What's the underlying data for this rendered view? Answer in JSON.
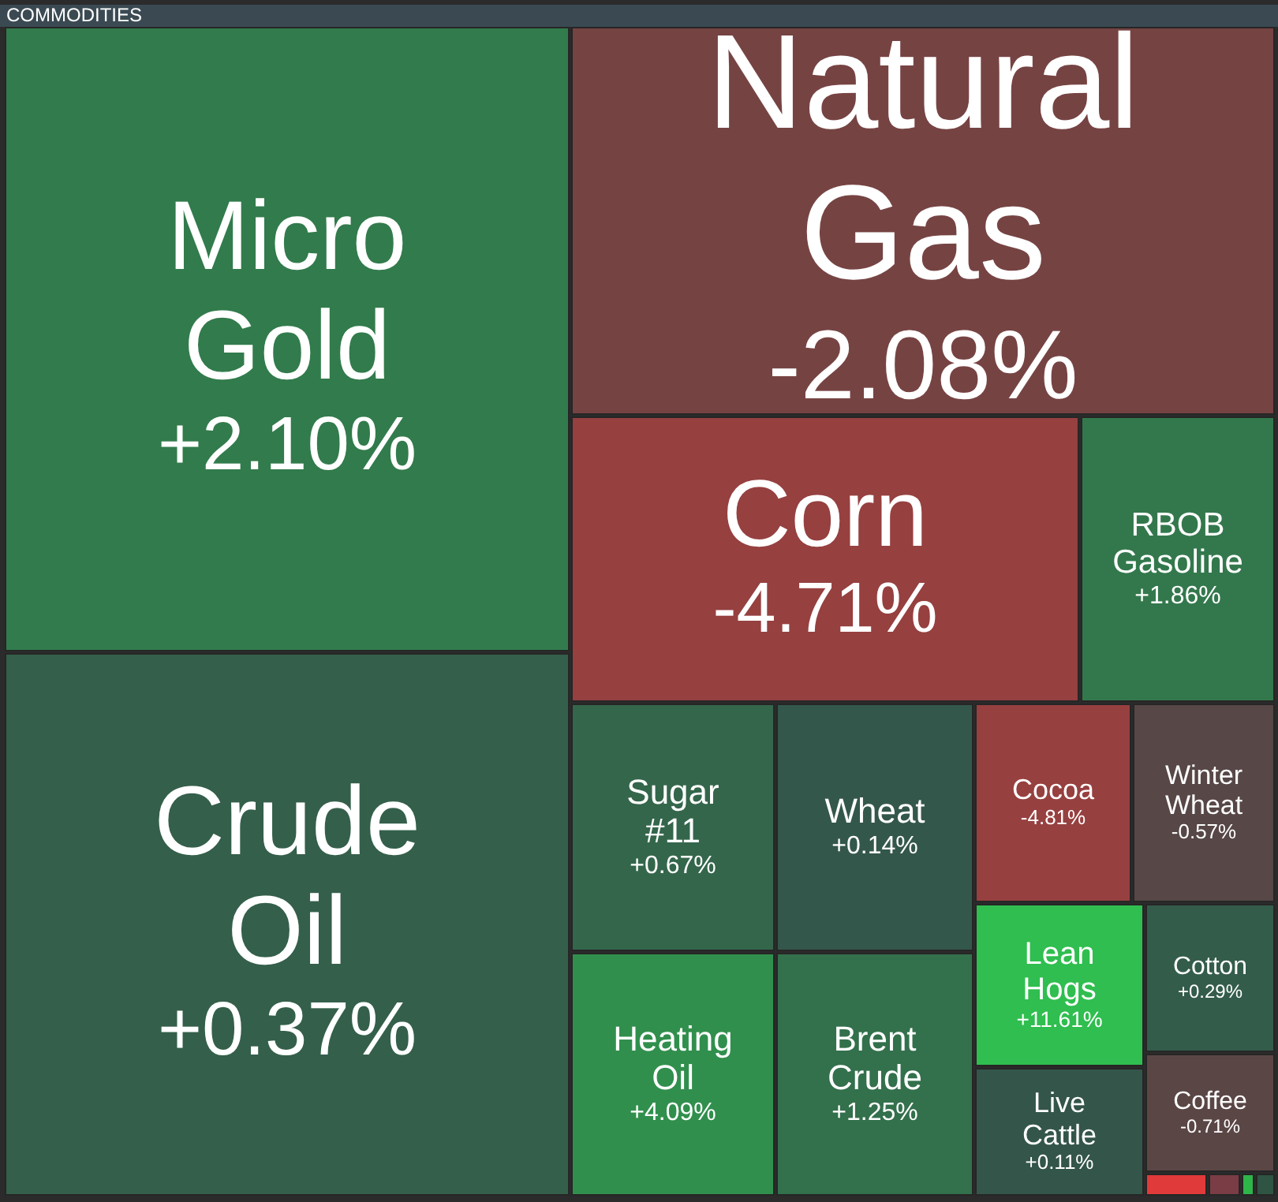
{
  "chart_data": {
    "type": "other",
    "title": "COMMODITIES",
    "categories": [
      "Micro Gold",
      "Natural Gas",
      "Corn",
      "RBOB Gasoline",
      "Crude Oil",
      "Sugar #11",
      "Wheat",
      "Cocoa",
      "Winter Wheat",
      "Heating Oil",
      "Brent Crude",
      "Lean Hogs",
      "Cotton",
      "Live Cattle",
      "Coffee"
    ],
    "values": [
      2.1,
      -2.08,
      -4.71,
      1.86,
      0.37,
      0.67,
      0.14,
      -4.81,
      -0.57,
      4.09,
      1.25,
      11.61,
      0.29,
      0.11,
      -0.71
    ],
    "value_labels": [
      "+2.10%",
      "-2.08%",
      "-4.71%",
      "+1.86%",
      "+0.37%",
      "+0.67%",
      "+0.14%",
      "-4.81%",
      "-0.57%",
      "+4.09%",
      "+1.25%",
      "+11.61%",
      "+0.29%",
      "+0.11%",
      "-0.71%"
    ]
  }
}
